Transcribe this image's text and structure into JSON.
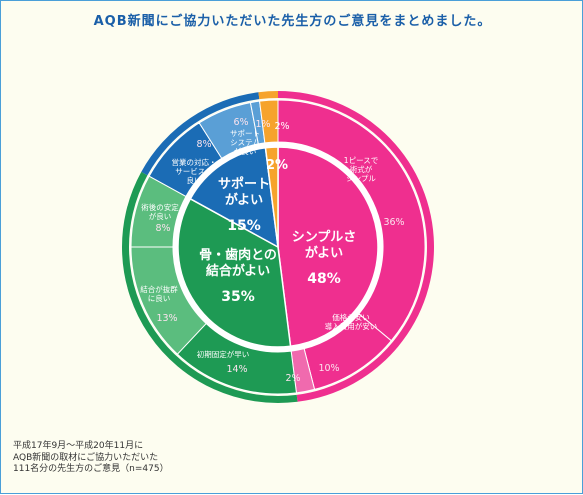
{
  "title": "AQB新聞にご協力いただいた先生方のご意見をまとめました。",
  "footnote": [
    "平成17年9月〜平成20年11月に",
    "AQB新聞の取材にご協力いただいた",
    "111名分の先生方のご意見（n=475）"
  ],
  "colors": {
    "pink": "#ef2f8f",
    "pink_light": "#f06aae",
    "green": "#1e9a54",
    "green_light": "#5bbd7e",
    "blue": "#1b6cb5",
    "blue_light": "#5a9fd6",
    "orange": "#f6a32c",
    "background": "#fdfdf0"
  },
  "chart_data": {
    "type": "pie",
    "inner": {
      "slices": [
        {
          "lines": [
            "シンプルさ",
            "がよい"
          ],
          "value": 48,
          "value_label": "48%",
          "color": "#ef2f8f"
        },
        {
          "lines": [
            "骨・歯肉との",
            "結合がよい"
          ],
          "value": 35,
          "value_label": "35%",
          "color": "#1e9a54"
        },
        {
          "lines": [
            "サポート",
            "がよい"
          ],
          "value": 15,
          "value_label": "15%",
          "color": "#1b6cb5"
        },
        {
          "lines": [],
          "value": 2,
          "value_label": "2%",
          "color": "#f6a32c"
        }
      ]
    },
    "outer": {
      "slices": [
        {
          "lines": [
            "1ピースで",
            "術式が",
            "シンプル"
          ],
          "value": 36,
          "value_label": "36%",
          "color": "#ef2f8f"
        },
        {
          "lines": [
            "価格が安い",
            "導入費用が安い"
          ],
          "value": 10,
          "value_label": "10%",
          "color": "#ef2f8f"
        },
        {
          "lines": [],
          "value": 2,
          "value_label": "2%",
          "color": "#f06aae"
        },
        {
          "lines": [
            "初期固定が早い"
          ],
          "value": 14,
          "value_label": "14%",
          "color": "#1e9a54"
        },
        {
          "lines": [
            "結合が抜群",
            "に良い"
          ],
          "value": 13,
          "value_label": "13%",
          "color": "#5bbd7e"
        },
        {
          "lines": [
            "術後の安定",
            "が良い"
          ],
          "value": 8,
          "value_label": "8%",
          "color": "#5bbd7e"
        },
        {
          "lines": [
            "営業の対応・",
            "サービスが",
            "良い"
          ],
          "value": 8,
          "value_label": "8%",
          "color": "#1b6cb5"
        },
        {
          "lines": [
            "サポート",
            "システム",
            "が良い"
          ],
          "value": 6,
          "value_label": "6%",
          "color": "#5a9fd6"
        },
        {
          "lines": [],
          "value": 1,
          "value_label": "1%",
          "color": "#5a9fd6"
        },
        {
          "lines": [],
          "value": 2,
          "value_label": "2%",
          "color": "#f6a32c"
        }
      ]
    }
  }
}
